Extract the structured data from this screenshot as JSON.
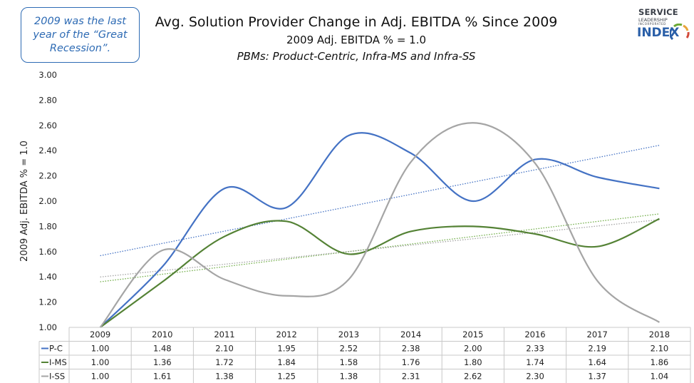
{
  "callout": {
    "line1": "2009 was the last",
    "line2": "year of the “Great",
    "line3": "Recession”."
  },
  "logo": {
    "line1": "SERVICE",
    "line2": "LEADERSHIP",
    "line3": "INCORPORATED",
    "line4": "INDEX",
    "accent_colors": [
      "#2a5fa8",
      "#6aa832",
      "#e8a43a",
      "#d24a3a"
    ]
  },
  "chart_data": {
    "type": "line",
    "title": "Avg. Solution Provider Change in Adj. EBITDA % Since 2009",
    "subtitle": "2009 Adj. EBITDA % = 1.0",
    "subtitle2": "PBMs: Product-Centric, Infra-MS and Infra-SS",
    "ylabel": "2009 Adj. EBITDA % = 1.0",
    "ylim": [
      1.0,
      3.0
    ],
    "ytick_step": 0.2,
    "yticks": [
      "1.00",
      "1.20",
      "1.40",
      "1.60",
      "1.80",
      "2.00",
      "2.20",
      "2.40",
      "2.60",
      "2.80",
      "3.00"
    ],
    "grid": false,
    "data_table": true,
    "trendlines": "linear, dotted, one per series",
    "categories": [
      "2009",
      "2010",
      "2011",
      "2012",
      "2013",
      "2014",
      "2015",
      "2016",
      "2017",
      "2018"
    ],
    "series": [
      {
        "name": "P-C",
        "color": "#4472c4",
        "trend_color": "#4472c4",
        "values": [
          1.0,
          1.48,
          2.1,
          1.95,
          2.52,
          2.38,
          2.0,
          2.33,
          2.19,
          2.1
        ],
        "labels": [
          "1.00",
          "1.48",
          "2.10",
          "1.95",
          "2.52",
          "2.38",
          "2.00",
          "2.33",
          "2.19",
          "2.10"
        ]
      },
      {
        "name": "I-MS",
        "color": "#548235",
        "trend_color": "#70ad47",
        "values": [
          1.0,
          1.36,
          1.72,
          1.84,
          1.58,
          1.76,
          1.8,
          1.74,
          1.64,
          1.86
        ],
        "labels": [
          "1.00",
          "1.36",
          "1.72",
          "1.84",
          "1.58",
          "1.76",
          "1.80",
          "1.74",
          "1.64",
          "1.86"
        ]
      },
      {
        "name": "I-SS",
        "color": "#a5a5a5",
        "trend_color": "#a5a5a5",
        "values": [
          1.0,
          1.61,
          1.38,
          1.25,
          1.38,
          2.31,
          2.62,
          2.3,
          1.37,
          1.04
        ],
        "labels": [
          "1.00",
          "1.61",
          "1.38",
          "1.25",
          "1.38",
          "2.31",
          "2.62",
          "2.30",
          "1.37",
          "1.04"
        ]
      }
    ]
  }
}
